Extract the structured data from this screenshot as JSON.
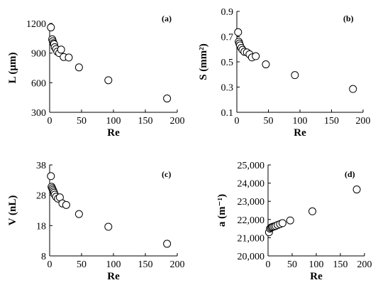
{
  "chart_data": [
    {
      "type": "scatter",
      "panel": "(a)",
      "xlabel": "Re",
      "ylabel": "L (µm)",
      "xlim": [
        0,
        200
      ],
      "ylim": [
        300,
        1200
      ],
      "xticks": [
        "0",
        "50",
        "100",
        "150",
        "200"
      ],
      "yticks": [
        "300",
        "600",
        "900",
        "1200"
      ],
      "points": [
        {
          "x": 2,
          "y": 1160
        },
        {
          "x": 4,
          "y": 1040
        },
        {
          "x": 5,
          "y": 1020
        },
        {
          "x": 6,
          "y": 1000
        },
        {
          "x": 7,
          "y": 990
        },
        {
          "x": 8,
          "y": 960
        },
        {
          "x": 10,
          "y": 940
        },
        {
          "x": 12,
          "y": 915
        },
        {
          "x": 15,
          "y": 900
        },
        {
          "x": 18,
          "y": 935
        },
        {
          "x": 22,
          "y": 860
        },
        {
          "x": 30,
          "y": 855
        },
        {
          "x": 46,
          "y": 755
        },
        {
          "x": 92,
          "y": 625
        },
        {
          "x": 184,
          "y": 440
        }
      ]
    },
    {
      "type": "scatter",
      "panel": "(b)",
      "xlabel": "Re",
      "ylabel": "S (mm²)",
      "xlim": [
        0,
        200
      ],
      "ylim": [
        0.1,
        0.9
      ],
      "xticks": [
        "0",
        "50",
        "100",
        "150",
        "200"
      ],
      "yticks": [
        "0.1",
        "0.3",
        "0.5",
        "0.7",
        "0.9"
      ],
      "points": [
        {
          "x": 2,
          "y": 0.735
        },
        {
          "x": 3,
          "y": 0.66
        },
        {
          "x": 4,
          "y": 0.645
        },
        {
          "x": 5,
          "y": 0.63
        },
        {
          "x": 7,
          "y": 0.61
        },
        {
          "x": 9,
          "y": 0.595
        },
        {
          "x": 12,
          "y": 0.58
        },
        {
          "x": 16,
          "y": 0.575
        },
        {
          "x": 20,
          "y": 0.56
        },
        {
          "x": 24,
          "y": 0.535
        },
        {
          "x": 30,
          "y": 0.545
        },
        {
          "x": 46,
          "y": 0.48
        },
        {
          "x": 92,
          "y": 0.395
        },
        {
          "x": 184,
          "y": 0.285
        }
      ]
    },
    {
      "type": "scatter",
      "panel": "(c)",
      "xlabel": "Re",
      "ylabel": "V (nL)",
      "xlim": [
        0,
        200
      ],
      "ylim": [
        8,
        38
      ],
      "xticks": [
        "0",
        "50",
        "100",
        "150",
        "200"
      ],
      "yticks": [
        "8",
        "18",
        "28",
        "38"
      ],
      "points": [
        {
          "x": 2,
          "y": 34.3
        },
        {
          "x": 3,
          "y": 30.8
        },
        {
          "x": 4,
          "y": 30.3
        },
        {
          "x": 5,
          "y": 29.8
        },
        {
          "x": 6,
          "y": 29.3
        },
        {
          "x": 7,
          "y": 28.8
        },
        {
          "x": 8,
          "y": 28.2
        },
        {
          "x": 10,
          "y": 27.5
        },
        {
          "x": 13,
          "y": 26.9
        },
        {
          "x": 16,
          "y": 27.3
        },
        {
          "x": 20,
          "y": 25.3
        },
        {
          "x": 26,
          "y": 24.8
        },
        {
          "x": 46,
          "y": 21.8
        },
        {
          "x": 92,
          "y": 17.6
        },
        {
          "x": 184,
          "y": 12.0
        }
      ]
    },
    {
      "type": "scatter",
      "panel": "(d)",
      "xlabel": "Re",
      "ylabel": "a (m⁻¹)",
      "xlim": [
        0,
        200
      ],
      "ylim": [
        20000,
        25000
      ],
      "xticks": [
        "0",
        "50",
        "100",
        "150",
        "200"
      ],
      "yticks": [
        "20,000",
        "21,000",
        "22,000",
        "23,000",
        "24,000",
        "25,000"
      ],
      "points": [
        {
          "x": 2,
          "y": 21300
        },
        {
          "x": 4,
          "y": 21500
        },
        {
          "x": 6,
          "y": 21550
        },
        {
          "x": 8,
          "y": 21580
        },
        {
          "x": 10,
          "y": 21600
        },
        {
          "x": 13,
          "y": 21620
        },
        {
          "x": 16,
          "y": 21650
        },
        {
          "x": 20,
          "y": 21700
        },
        {
          "x": 25,
          "y": 21750
        },
        {
          "x": 30,
          "y": 21800
        },
        {
          "x": 46,
          "y": 21950
        },
        {
          "x": 92,
          "y": 22450
        },
        {
          "x": 184,
          "y": 23650
        }
      ]
    }
  ]
}
